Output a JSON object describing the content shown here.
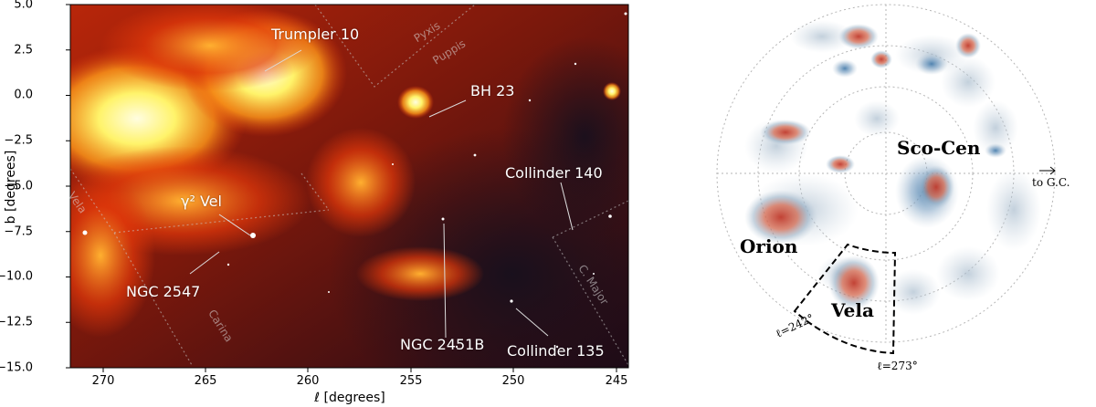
{
  "left_panel": {
    "y_axis_title": "b [degrees]",
    "x_axis_title": "ℓ [degrees]",
    "y_ticks": [
      "5.0",
      "2.5",
      "0.0",
      "−2.5",
      "−5.0",
      "−7.5",
      "−10.0",
      "−12.5",
      "−15.0"
    ],
    "x_ticks": [
      "270",
      "265",
      "260",
      "255",
      "250",
      "245"
    ],
    "cluster_labels": {
      "trumpler10": "Trumpler 10",
      "bh23": "BH 23",
      "collinder140": "Collinder 140",
      "gamma2vel": "γ² Vel",
      "ngc2547": "NGC 2547",
      "ngc2451b": "NGC 2451B",
      "collinder135": "Collinder 135"
    },
    "constellation_labels": {
      "pyxis": "Pyxis",
      "puppis": "Puppis",
      "vela": "Vela",
      "carina": "Carina",
      "cmajor": "C. Major"
    }
  },
  "right_panel": {
    "region_labels": {
      "scocen": "Sco-Cen",
      "orion": "Orion",
      "vela": "Vela"
    },
    "gc_label": "to G.C.",
    "wedge_left_label": "ℓ=242°",
    "wedge_right_label": "ℓ=273°"
  },
  "colors": {
    "nebula_bright": "#fff36a",
    "nebula_mid": "#e2380a",
    "nebula_dark": "#2a0a10",
    "density_high": "#c0392b",
    "density_low": "#9fb4c8"
  }
}
